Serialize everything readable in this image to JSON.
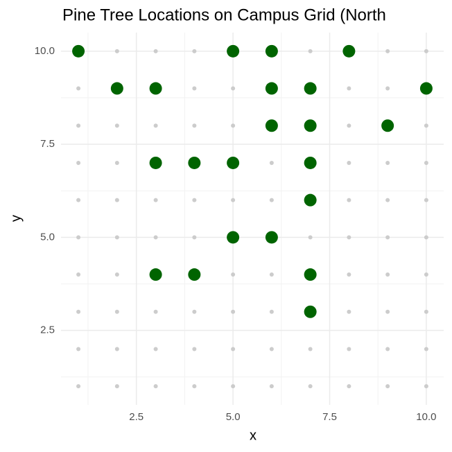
{
  "chart_data": {
    "type": "scatter",
    "title": "Pine Tree Locations on Campus Grid (North",
    "x_label": "x",
    "y_label": "y",
    "xlim": [
      0.55,
      10.45
    ],
    "ylim": [
      0.5,
      10.5
    ],
    "xticks": [
      2.5,
      {
        "value": 5,
        "label": "5.0"
      },
      7.5,
      {
        "value": 10,
        "label": "10.0"
      }
    ],
    "yticks": [
      2.5,
      {
        "value": 5,
        "label": "5.0"
      },
      7.5,
      {
        "value": 10,
        "label": "10.0"
      }
    ],
    "grid": true,
    "series": [
      {
        "color": "#cccccc",
        "x": [
          1,
          2,
          3,
          4,
          5,
          6,
          7,
          8,
          9,
          10,
          1,
          2,
          3,
          4,
          5,
          6,
          7,
          8,
          9,
          10,
          1,
          2,
          3,
          4,
          5,
          6,
          7,
          8,
          9,
          10,
          1,
          2,
          3,
          4,
          5,
          6,
          7,
          8,
          9,
          10,
          1,
          2,
          3,
          4,
          5,
          6,
          7,
          8,
          9,
          10,
          1,
          2,
          3,
          4,
          5,
          6,
          7,
          8,
          9,
          10,
          1,
          2,
          3,
          4,
          5,
          6,
          7,
          8,
          9,
          10,
          1,
          2,
          3,
          4,
          5,
          6,
          7,
          8,
          9,
          10,
          1,
          2,
          3,
          4,
          5,
          6,
          7,
          8,
          9,
          10,
          1,
          2,
          3,
          4,
          5,
          6,
          7,
          8,
          9,
          10
        ],
        "values": [
          1,
          1,
          1,
          1,
          1,
          1,
          1,
          1,
          1,
          1,
          2,
          2,
          2,
          2,
          2,
          2,
          2,
          2,
          2,
          2,
          3,
          3,
          3,
          3,
          3,
          3,
          3,
          3,
          3,
          3,
          4,
          4,
          4,
          4,
          4,
          4,
          4,
          4,
          4,
          4,
          5,
          5,
          5,
          5,
          5,
          5,
          5,
          5,
          5,
          5,
          6,
          6,
          6,
          6,
          6,
          6,
          6,
          6,
          6,
          6,
          7,
          7,
          7,
          7,
          7,
          7,
          7,
          7,
          7,
          7,
          8,
          8,
          8,
          8,
          8,
          8,
          8,
          8,
          8,
          8,
          9,
          9,
          9,
          9,
          9,
          9,
          9,
          9,
          9,
          9,
          10,
          10,
          10,
          10,
          10,
          10,
          10,
          10,
          10,
          10
        ]
      },
      {
        "color": "#006400",
        "x": [
          1,
          5,
          6,
          8,
          2,
          3,
          6,
          7,
          10,
          6,
          7,
          9,
          3,
          4,
          5,
          7,
          7,
          5,
          6,
          3,
          4,
          7,
          7
        ],
        "values": [
          10,
          10,
          10,
          10,
          9,
          9,
          9,
          9,
          9,
          8,
          8,
          8,
          7,
          7,
          7,
          7,
          6,
          5,
          5,
          4,
          4,
          4,
          3
        ]
      }
    ]
  }
}
